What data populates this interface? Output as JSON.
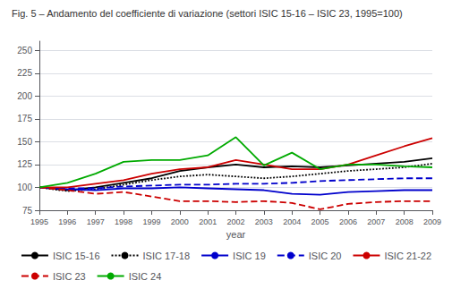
{
  "chart_data": {
    "type": "line",
    "title": "Fig. 5 – Andamento del coefficiente di variazione (settori ISIC 15-16 – ISIC 23, 1995=100)",
    "xlabel": "year",
    "x": [
      1995,
      1996,
      1997,
      1998,
      1999,
      2000,
      2001,
      2002,
      2003,
      2004,
      2005,
      2006,
      2007,
      2008,
      2009
    ],
    "xlim": [
      1995,
      2009
    ],
    "xticks": [
      1995,
      1996,
      1997,
      1998,
      1999,
      2000,
      2001,
      2002,
      2003,
      2004,
      2005,
      2006,
      2007,
      2008,
      2009
    ],
    "ylim": [
      75,
      260
    ],
    "yticks": [
      75,
      100,
      125,
      150,
      175,
      200,
      225,
      250
    ],
    "grid": true,
    "legend": "bottom",
    "series": [
      {
        "name": "ISIC 15-16",
        "color": "#000000",
        "line_style": "solid",
        "values": [
          100,
          97,
          100,
          105,
          110,
          118,
          122,
          125,
          122,
          123,
          122,
          124,
          126,
          128,
          132
        ]
      },
      {
        "name": "ISIC 17-18",
        "color": "#000000",
        "line_style": "dotted",
        "values": [
          100,
          96,
          98,
          103,
          108,
          112,
          114,
          112,
          110,
          112,
          115,
          118,
          120,
          122,
          126
        ]
      },
      {
        "name": "ISIC 19",
        "color": "#0000cc",
        "line_style": "solid",
        "values": [
          100,
          98,
          97,
          99,
          99,
          100,
          99,
          98,
          97,
          93,
          92,
          95,
          96,
          97,
          97
        ]
      },
      {
        "name": "ISIC 20",
        "color": "#0000cc",
        "line_style": "dashed",
        "values": [
          100,
          99,
          99,
          101,
          102,
          103,
          103,
          104,
          104,
          105,
          107,
          108,
          109,
          110,
          110
        ]
      },
      {
        "name": "ISIC 21-22",
        "color": "#cc0000",
        "line_style": "solid",
        "values": [
          100,
          100,
          104,
          108,
          115,
          120,
          122,
          130,
          125,
          120,
          120,
          125,
          135,
          145,
          154
        ]
      },
      {
        "name": "ISIC 23",
        "color": "#cc0000",
        "line_style": "dashed",
        "values": [
          100,
          97,
          93,
          95,
          90,
          85,
          85,
          84,
          85,
          83,
          76,
          82,
          84,
          85,
          85
        ]
      },
      {
        "name": "ISIC 24",
        "color": "#00aa00",
        "line_style": "solid",
        "values": [
          100,
          105,
          115,
          128,
          130,
          130,
          135,
          155,
          124,
          138,
          120,
          125,
          125,
          123,
          122
        ]
      }
    ]
  }
}
